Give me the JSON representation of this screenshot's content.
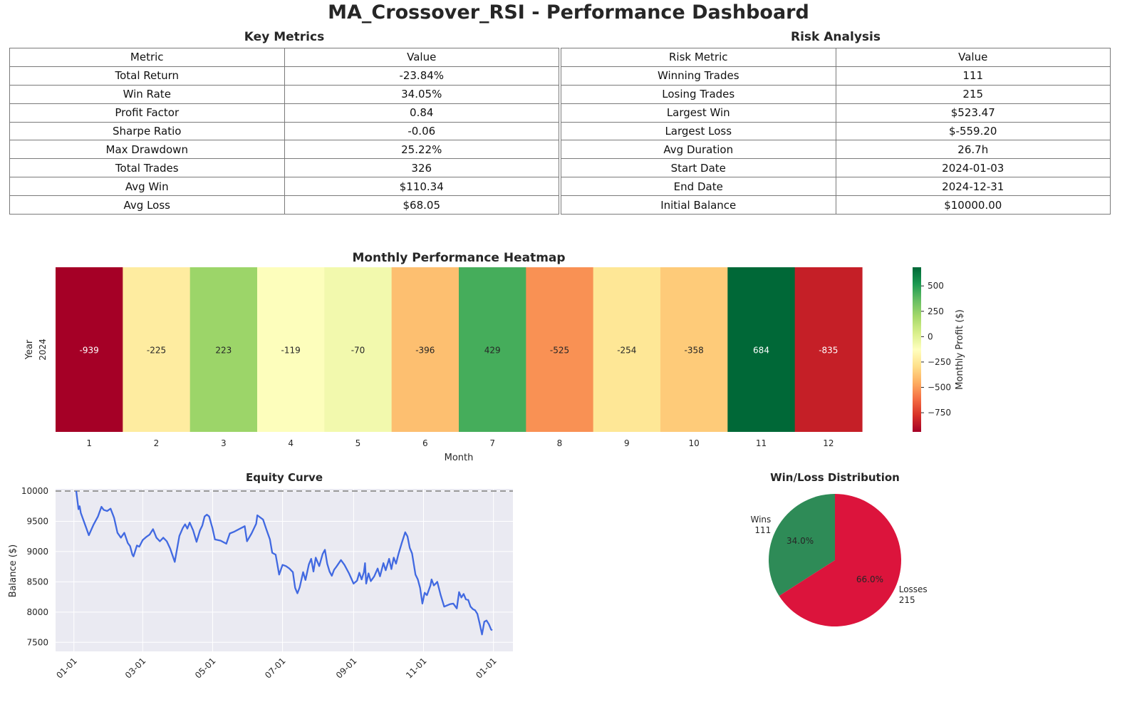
{
  "page_title": "MA_Crossover_RSI - Performance Dashboard",
  "key_metrics": {
    "title": "Key Metrics",
    "headers": [
      "Metric",
      "Value"
    ],
    "rows": [
      [
        "Total Return",
        "-23.84%"
      ],
      [
        "Win Rate",
        "34.05%"
      ],
      [
        "Profit Factor",
        "0.84"
      ],
      [
        "Sharpe Ratio",
        "-0.06"
      ],
      [
        "Max Drawdown",
        "25.22%"
      ],
      [
        "Total Trades",
        "326"
      ],
      [
        "Avg Win",
        "$110.34"
      ],
      [
        "Avg Loss",
        "$68.05"
      ]
    ]
  },
  "risk_analysis": {
    "title": "Risk Analysis",
    "headers": [
      "Risk Metric",
      "Value"
    ],
    "rows": [
      [
        "Winning Trades",
        "111"
      ],
      [
        "Losing Trades",
        "215"
      ],
      [
        "Largest Win",
        "$523.47"
      ],
      [
        "Largest Loss",
        "$-559.20"
      ],
      [
        "Avg Duration",
        "26.7h"
      ],
      [
        "Start Date",
        "2024-01-03"
      ],
      [
        "End Date",
        "2024-12-31"
      ],
      [
        "Initial Balance",
        "$10000.00"
      ]
    ]
  },
  "chart_data": [
    {
      "type": "heatmap",
      "title": "Monthly Performance Heatmap",
      "xlabel": "Month",
      "ylabel": "Year",
      "y_categories": [
        "2024"
      ],
      "x_categories": [
        "1",
        "2",
        "3",
        "4",
        "5",
        "6",
        "7",
        "8",
        "9",
        "10",
        "11",
        "12"
      ],
      "values": [
        [
          -939,
          -225,
          223,
          -119,
          -70,
          -396,
          429,
          -525,
          -254,
          -358,
          684,
          -835
        ]
      ],
      "colorbar": {
        "label": "Monthly Profit ($)",
        "range": [
          -939,
          684
        ],
        "ticks": [
          500,
          250,
          0,
          -250,
          -500,
          -750
        ],
        "tick_labels": [
          "500",
          "250",
          "0",
          "−250",
          "−500",
          "−750"
        ],
        "colormap": "RdYlGn"
      }
    },
    {
      "type": "line",
      "title": "Equity Curve",
      "xlabel": "",
      "ylabel": "Balance ($)",
      "x_tick_labels": [
        "01-01",
        "03-01",
        "05-01",
        "07-01",
        "09-01",
        "11-01",
        "01-01"
      ],
      "x_tick_dates": [
        "2024-01-01",
        "2024-03-01",
        "2024-05-01",
        "2024-07-01",
        "2024-09-01",
        "2024-11-01",
        "2025-01-01"
      ],
      "x_range": [
        "2023-12-16",
        "2025-01-18"
      ],
      "ylim": [
        7350,
        10130
      ],
      "y_ticks": [
        7500,
        8000,
        8500,
        9000,
        9500,
        10000
      ],
      "reference_line": {
        "y": 10000,
        "style": "dashed",
        "color": "#9a9a9a"
      },
      "grid": true,
      "line_color": "#4169e1",
      "series": [
        {
          "points": [
            [
              "2024-01-03",
              10000
            ],
            [
              "2024-01-05",
              9700
            ],
            [
              "2024-01-06",
              9750
            ],
            [
              "2024-01-07",
              9640
            ],
            [
              "2024-01-12",
              9380
            ],
            [
              "2024-01-14",
              9270
            ],
            [
              "2024-01-18",
              9440
            ],
            [
              "2024-01-22",
              9580
            ],
            [
              "2024-01-25",
              9740
            ],
            [
              "2024-01-27",
              9690
            ],
            [
              "2024-01-30",
              9670
            ],
            [
              "2024-02-02",
              9710
            ],
            [
              "2024-02-05",
              9560
            ],
            [
              "2024-02-08",
              9310
            ],
            [
              "2024-02-11",
              9230
            ],
            [
              "2024-02-14",
              9310
            ],
            [
              "2024-02-17",
              9140
            ],
            [
              "2024-02-19",
              9090
            ],
            [
              "2024-02-21",
              8950
            ],
            [
              "2024-02-22",
              8920
            ],
            [
              "2024-02-25",
              9100
            ],
            [
              "2024-02-27",
              9080
            ],
            [
              "2024-03-01",
              9190
            ],
            [
              "2024-03-04",
              9240
            ],
            [
              "2024-03-07",
              9280
            ],
            [
              "2024-03-10",
              9370
            ],
            [
              "2024-03-13",
              9230
            ],
            [
              "2024-03-16",
              9170
            ],
            [
              "2024-03-19",
              9230
            ],
            [
              "2024-03-22",
              9170
            ],
            [
              "2024-03-25",
              9050
            ],
            [
              "2024-03-29",
              8830
            ],
            [
              "2024-04-02",
              9260
            ],
            [
              "2024-04-05",
              9390
            ],
            [
              "2024-04-07",
              9450
            ],
            [
              "2024-04-09",
              9380
            ],
            [
              "2024-04-11",
              9480
            ],
            [
              "2024-04-14",
              9350
            ],
            [
              "2024-04-17",
              9160
            ],
            [
              "2024-04-20",
              9350
            ],
            [
              "2024-04-22",
              9430
            ],
            [
              "2024-04-24",
              9580
            ],
            [
              "2024-04-26",
              9610
            ],
            [
              "2024-04-28",
              9580
            ],
            [
              "2024-05-01",
              9380
            ],
            [
              "2024-05-03",
              9200
            ],
            [
              "2024-05-08",
              9180
            ],
            [
              "2024-05-13",
              9130
            ],
            [
              "2024-05-16",
              9300
            ],
            [
              "2024-05-20",
              9330
            ],
            [
              "2024-05-29",
              9420
            ],
            [
              "2024-05-31",
              9170
            ],
            [
              "2024-06-04",
              9300
            ],
            [
              "2024-06-08",
              9460
            ],
            [
              "2024-06-09",
              9600
            ],
            [
              "2024-06-14",
              9530
            ],
            [
              "2024-06-17",
              9360
            ],
            [
              "2024-06-20",
              9200
            ],
            [
              "2024-06-22",
              8980
            ],
            [
              "2024-06-25",
              8950
            ],
            [
              "2024-06-27",
              8730
            ],
            [
              "2024-06-28",
              8620
            ],
            [
              "2024-07-01",
              8780
            ],
            [
              "2024-07-04",
              8760
            ],
            [
              "2024-07-07",
              8720
            ],
            [
              "2024-07-10",
              8660
            ],
            [
              "2024-07-12",
              8400
            ],
            [
              "2024-07-14",
              8310
            ],
            [
              "2024-07-16",
              8410
            ],
            [
              "2024-07-19",
              8660
            ],
            [
              "2024-07-21",
              8530
            ],
            [
              "2024-07-24",
              8790
            ],
            [
              "2024-07-26",
              8880
            ],
            [
              "2024-07-28",
              8670
            ],
            [
              "2024-07-30",
              8900
            ],
            [
              "2024-08-02",
              8760
            ],
            [
              "2024-08-05",
              8960
            ],
            [
              "2024-08-07",
              9030
            ],
            [
              "2024-08-09",
              8800
            ],
            [
              "2024-08-11",
              8670
            ],
            [
              "2024-08-13",
              8600
            ],
            [
              "2024-08-15",
              8700
            ],
            [
              "2024-08-17",
              8750
            ],
            [
              "2024-08-21",
              8860
            ],
            [
              "2024-08-24",
              8780
            ],
            [
              "2024-08-28",
              8640
            ],
            [
              "2024-09-01",
              8470
            ],
            [
              "2024-09-04",
              8520
            ],
            [
              "2024-09-06",
              8650
            ],
            [
              "2024-09-08",
              8540
            ],
            [
              "2024-09-10",
              8660
            ],
            [
              "2024-09-11",
              8810
            ],
            [
              "2024-09-12",
              8470
            ],
            [
              "2024-09-14",
              8640
            ],
            [
              "2024-09-16",
              8510
            ],
            [
              "2024-09-19",
              8590
            ],
            [
              "2024-09-22",
              8720
            ],
            [
              "2024-09-24",
              8590
            ],
            [
              "2024-09-27",
              8810
            ],
            [
              "2024-09-29",
              8690
            ],
            [
              "2024-10-02",
              8880
            ],
            [
              "2024-10-04",
              8710
            ],
            [
              "2024-10-06",
              8900
            ],
            [
              "2024-10-08",
              8800
            ],
            [
              "2024-10-10",
              8950
            ],
            [
              "2024-10-13",
              9140
            ],
            [
              "2024-10-16",
              9320
            ],
            [
              "2024-10-18",
              9250
            ],
            [
              "2024-10-20",
              9060
            ],
            [
              "2024-10-22",
              8970
            ],
            [
              "2024-10-25",
              8620
            ],
            [
              "2024-10-27",
              8540
            ],
            [
              "2024-10-29",
              8400
            ],
            [
              "2024-10-31",
              8140
            ],
            [
              "2024-11-02",
              8320
            ],
            [
              "2024-11-04",
              8280
            ],
            [
              "2024-11-07",
              8440
            ],
            [
              "2024-11-08",
              8540
            ],
            [
              "2024-11-10",
              8440
            ],
            [
              "2024-11-13",
              8500
            ],
            [
              "2024-11-16",
              8280
            ],
            [
              "2024-11-19",
              8090
            ],
            [
              "2024-11-24",
              8130
            ],
            [
              "2024-11-27",
              8140
            ],
            [
              "2024-11-30",
              8060
            ],
            [
              "2024-12-02",
              8330
            ],
            [
              "2024-12-04",
              8240
            ],
            [
              "2024-12-06",
              8300
            ],
            [
              "2024-12-08",
              8210
            ],
            [
              "2024-12-10",
              8200
            ],
            [
              "2024-12-12",
              8090
            ],
            [
              "2024-12-14",
              8050
            ],
            [
              "2024-12-16",
              8030
            ],
            [
              "2024-12-18",
              7970
            ],
            [
              "2024-12-20",
              7810
            ],
            [
              "2024-12-22",
              7630
            ],
            [
              "2024-12-24",
              7840
            ],
            [
              "2024-12-26",
              7860
            ],
            [
              "2024-12-28",
              7800
            ],
            [
              "2024-12-30",
              7710
            ],
            [
              "2024-12-31",
              7700
            ]
          ]
        }
      ]
    },
    {
      "type": "pie",
      "title": "Win/Loss Distribution",
      "slices": [
        {
          "label": "Wins",
          "count_label": "111",
          "value": 111,
          "percent_label": "34.0%",
          "color": "#2e8b57"
        },
        {
          "label": "Losses",
          "count_label": "215",
          "value": 215,
          "percent_label": "66.0%",
          "color": "#dc143c"
        }
      ]
    }
  ]
}
